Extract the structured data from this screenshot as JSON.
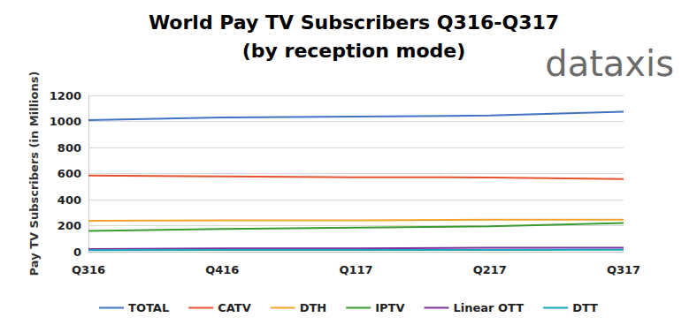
{
  "chart_data": {
    "type": "line",
    "title": "World Pay TV Subscribers Q316-Q317",
    "subtitle": "(by reception mode)",
    "annotation": "dataxis",
    "y_label": "Pay TV Subscribers (in Millions)",
    "categories": [
      "Q316",
      "Q416",
      "Q117",
      "Q217",
      "Q317"
    ],
    "series": [
      {
        "name": "TOTAL",
        "color": "#4472c4",
        "values": [
          1010,
          1030,
          1037,
          1045,
          1075
        ]
      },
      {
        "name": "CATV",
        "color": "#e5522b",
        "values": [
          585,
          578,
          572,
          570,
          557
        ]
      },
      {
        "name": "DTH",
        "color": "#f2a42a",
        "values": [
          238,
          240,
          240,
          245,
          245
        ]
      },
      {
        "name": "IPTV",
        "color": "#3a9a2e",
        "values": [
          160,
          175,
          185,
          195,
          220
        ]
      },
      {
        "name": "Linear OTT",
        "color": "#7b2fa0",
        "values": [
          20,
          25,
          25,
          30,
          30
        ]
      },
      {
        "name": "DTT",
        "color": "#1aa3b8",
        "values": [
          12,
          13,
          13,
          14,
          15
        ]
      }
    ],
    "ylim": [
      0,
      1200
    ],
    "yticks": [
      0,
      200,
      400,
      600,
      800,
      1000,
      1200
    ],
    "grid": true,
    "legend": "bottom"
  }
}
